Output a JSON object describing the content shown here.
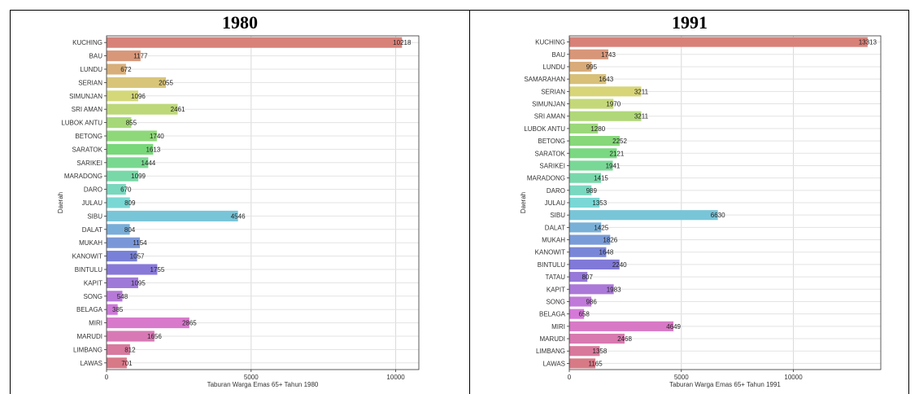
{
  "chart_data": [
    {
      "type": "bar",
      "orientation": "horizontal",
      "title": "1980",
      "xlabel": "Taburan Warga Emas 65+ Tahun 1980",
      "ylabel": "Daerah",
      "xlim": [
        0,
        10800
      ],
      "xticks": [
        0,
        5000,
        10000
      ],
      "grid": true,
      "categories": [
        "KUCHING",
        "BAU",
        "LUNDU",
        "SERIAN",
        "SIMUNJAN",
        "SRI AMAN",
        "LUBOK ANTU",
        "BETONG",
        "SARATOK",
        "SARIKEI",
        "MARADONG",
        "DARO",
        "JULAU",
        "SIBU",
        "DALAT",
        "MUKAH",
        "KANOWIT",
        "BINTULU",
        "KAPIT",
        "SONG",
        "BELAGA",
        "MIRI",
        "MARUDI",
        "LIMBANG",
        "LAWAS"
      ],
      "values": [
        10218,
        1177,
        672,
        2055,
        1096,
        2461,
        855,
        1740,
        1613,
        1444,
        1099,
        670,
        809,
        4546,
        804,
        1154,
        1057,
        1755,
        1095,
        548,
        385,
        2865,
        1656,
        812,
        701
      ]
    },
    {
      "type": "bar",
      "orientation": "horizontal",
      "title": "1991",
      "xlabel": "Taburan Warga Emas 65+ Tahun 1991",
      "ylabel": "Daerah",
      "xlim": [
        0,
        13900
      ],
      "xticks": [
        0,
        5000,
        10000
      ],
      "grid": true,
      "categories": [
        "KUCHING",
        "BAU",
        "LUNDU",
        "SAMARAHAN",
        "SERIAN",
        "SIMUNJAN",
        "SRI AMAN",
        "LUBOK ANTU",
        "BETONG",
        "SARATOK",
        "SARIKEI",
        "MARADONG",
        "DARO",
        "JULAU",
        "SIBU",
        "DALAT",
        "MUKAH",
        "KANOWIT",
        "BINTULU",
        "TATAU",
        "KAPIT",
        "SONG",
        "BELAGA",
        "MIRI",
        "MARUDI",
        "LIMBANG",
        "LAWAS"
      ],
      "values": [
        13313,
        1743,
        995,
        1643,
        3211,
        1970,
        3211,
        1280,
        2252,
        2121,
        1941,
        1415,
        989,
        1353,
        6630,
        1425,
        1826,
        1648,
        2240,
        807,
        1983,
        986,
        658,
        4649,
        2468,
        1358,
        1165
      ]
    }
  ]
}
